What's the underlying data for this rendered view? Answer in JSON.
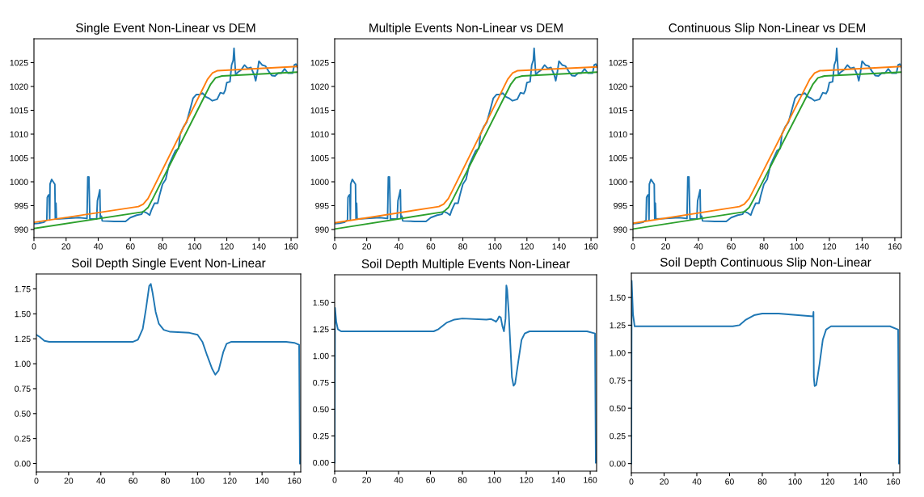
{
  "chart_data": [
    {
      "type": "line",
      "title": "Single Event Non-Linear vs DEM",
      "xlim": [
        0,
        164
      ],
      "ylim": [
        988.3,
        1030
      ],
      "xticks": [
        0,
        20,
        40,
        60,
        80,
        100,
        120,
        140,
        160
      ],
      "yticks": [
        990,
        995,
        1000,
        1005,
        1010,
        1015,
        1020,
        1025
      ],
      "series": [
        {
          "color": "#1f77b4",
          "x": [
            0,
            3,
            6,
            8,
            8.3,
            9,
            9.5,
            9.8,
            10,
            11,
            12,
            13,
            13.3,
            13.7,
            14,
            20,
            28,
            33,
            33.5,
            34.2,
            34.8,
            39,
            39.5,
            40.5,
            41,
            41.3,
            42,
            42.5,
            50,
            57,
            60,
            64,
            67,
            68,
            70,
            72,
            73,
            75,
            77,
            78,
            80,
            82,
            84,
            86,
            88,
            90,
            91,
            93,
            95,
            97,
            99,
            101,
            103,
            105,
            107,
            109,
            111,
            114,
            116,
            118,
            119,
            120,
            122,
            123,
            124,
            124.5,
            125.5,
            127,
            129,
            131,
            133,
            135,
            137,
            138,
            139,
            140,
            142,
            144,
            146,
            148,
            150,
            152,
            154,
            156,
            158,
            160,
            161,
            162,
            163,
            164
          ],
          "values": [
            991.2,
            991.3,
            991.5,
            992,
            996.7,
            997.2,
            997.3,
            992,
            999.5,
            1000.5,
            1000,
            999.5,
            992.2,
            995.5,
            992.2,
            992.3,
            992.5,
            992.3,
            1001,
            1001,
            992.2,
            992.2,
            996,
            997.5,
            998.3,
            992.5,
            992.8,
            991.8,
            991.7,
            991.7,
            992.5,
            993,
            993.2,
            993.8,
            993.5,
            993,
            994,
            995.5,
            995.5,
            997,
            999.5,
            1000.5,
            1003.5,
            1005,
            1006.5,
            1007,
            1010,
            1011.5,
            1012.5,
            1015,
            1017.5,
            1018.3,
            1018.3,
            1018.6,
            1017.8,
            1017.5,
            1017,
            1017.3,
            1018.7,
            1018.5,
            1019.2,
            1020.8,
            1021,
            1024.5,
            1025.5,
            1028,
            1022.5,
            1023,
            1023.5,
            1024.5,
            1023.8,
            1024,
            1022.5,
            1021.2,
            1023,
            1025.3,
            1024.5,
            1024.3,
            1023.2,
            1022.3,
            1022.2,
            1022.8,
            1022.8,
            1023.7,
            1022.8,
            1022.8,
            1022.8,
            1024.5,
            1024.7,
            1024
          ]
        },
        {
          "color": "#ff7f0e",
          "x": [
            0,
            65,
            68,
            71,
            74,
            108,
            111,
            114,
            164
          ],
          "values": [
            991.5,
            994.8,
            995.3,
            996.5,
            998.5,
            1021.5,
            1022.8,
            1023.3,
            1024.2
          ]
        },
        {
          "color": "#2ca02c",
          "x": [
            0,
            68,
            71,
            74,
            110,
            113,
            117,
            164
          ],
          "values": [
            990.2,
            993.7,
            994.6,
            996.5,
            1020.5,
            1021.8,
            1022.2,
            1023
          ]
        }
      ]
    },
    {
      "type": "line",
      "title": "Multiple Events Non-Linear vs DEM",
      "xlim": [
        0,
        164
      ],
      "ylim": [
        988.3,
        1030
      ],
      "xticks": [
        0,
        20,
        40,
        60,
        80,
        100,
        120,
        140,
        160
      ],
      "yticks": [
        990,
        995,
        1000,
        1005,
        1010,
        1015,
        1020,
        1025
      ],
      "series": [
        {
          "color": "#1f77b4",
          "x": [
            0,
            3,
            6,
            8,
            8.3,
            9,
            9.5,
            9.8,
            10,
            11,
            12,
            13,
            13.3,
            13.7,
            14,
            20,
            28,
            33,
            33.5,
            34.2,
            34.8,
            39,
            39.5,
            40.5,
            41,
            41.3,
            42,
            42.5,
            50,
            57,
            60,
            64,
            67,
            68,
            70,
            72,
            73,
            75,
            77,
            78,
            80,
            82,
            84,
            86,
            88,
            90,
            91,
            93,
            95,
            97,
            99,
            101,
            103,
            105,
            107,
            109,
            111,
            114,
            116,
            118,
            119,
            120,
            122,
            123,
            124,
            124.5,
            125.5,
            127,
            129,
            131,
            133,
            135,
            137,
            138,
            139,
            140,
            142,
            144,
            146,
            148,
            150,
            152,
            154,
            156,
            158,
            160,
            161,
            162,
            163,
            164
          ],
          "values": [
            991.2,
            991.3,
            991.5,
            992,
            996.7,
            997.2,
            997.3,
            992,
            999.5,
            1000.5,
            1000,
            999.5,
            992.2,
            995.5,
            992.2,
            992.3,
            992.5,
            992.3,
            1001,
            1001,
            992.2,
            992.2,
            996,
            997.5,
            998.3,
            992.5,
            992.8,
            991.8,
            991.7,
            991.7,
            992.5,
            993,
            993.2,
            993.8,
            993.5,
            993,
            994,
            995.5,
            995.5,
            997,
            999.5,
            1000.5,
            1003.5,
            1005,
            1006.5,
            1007,
            1010,
            1011.5,
            1012.5,
            1015,
            1017.5,
            1018.3,
            1018.3,
            1018.6,
            1017.8,
            1017.5,
            1017,
            1017.3,
            1018.7,
            1018.5,
            1019.2,
            1020.8,
            1021,
            1024.5,
            1025.5,
            1028,
            1022.5,
            1023,
            1023.5,
            1024.5,
            1023.8,
            1024,
            1022.5,
            1021.2,
            1023,
            1025.3,
            1024.5,
            1024.3,
            1023.2,
            1022.3,
            1022.2,
            1022.8,
            1022.8,
            1023.7,
            1022.8,
            1022.8,
            1022.8,
            1024.5,
            1024.7,
            1024
          ]
        },
        {
          "color": "#ff7f0e",
          "x": [
            0,
            65,
            68,
            71,
            74,
            108,
            111,
            114,
            164
          ],
          "values": [
            991.4,
            994.8,
            995.3,
            996.5,
            998.5,
            1021.5,
            1022.8,
            1023.3,
            1024.1
          ]
        },
        {
          "color": "#2ca02c",
          "x": [
            0,
            68,
            71,
            74,
            110,
            113,
            117,
            164
          ],
          "values": [
            990.1,
            993.7,
            994.6,
            996.5,
            1020.5,
            1021.8,
            1022.2,
            1023
          ]
        }
      ]
    },
    {
      "type": "line",
      "title": "Continuous Slip Non-Linear vs DEM",
      "xlim": [
        0,
        164
      ],
      "ylim": [
        988.3,
        1030
      ],
      "xticks": [
        0,
        20,
        40,
        60,
        80,
        100,
        120,
        140,
        160
      ],
      "yticks": [
        990,
        995,
        1000,
        1005,
        1010,
        1015,
        1020,
        1025
      ],
      "series": [
        {
          "color": "#1f77b4",
          "x": [
            0,
            3,
            6,
            8,
            8.3,
            9,
            9.5,
            9.8,
            10,
            11,
            12,
            13,
            13.3,
            13.7,
            14,
            20,
            28,
            33,
            33.5,
            34.2,
            34.8,
            39,
            39.5,
            40.5,
            41,
            41.3,
            42,
            42.5,
            50,
            57,
            60,
            64,
            67,
            68,
            70,
            72,
            73,
            75,
            77,
            78,
            80,
            82,
            84,
            86,
            88,
            90,
            91,
            93,
            95,
            97,
            99,
            101,
            103,
            105,
            107,
            109,
            111,
            114,
            116,
            118,
            119,
            120,
            122,
            123,
            124,
            124.5,
            125.5,
            127,
            129,
            131,
            133,
            135,
            137,
            138,
            139,
            140,
            142,
            144,
            146,
            148,
            150,
            152,
            154,
            156,
            158,
            160,
            161,
            162,
            163,
            164
          ],
          "values": [
            991.2,
            991.3,
            991.5,
            992,
            996.7,
            997.2,
            997.3,
            992,
            999.5,
            1000.5,
            1000,
            999.5,
            992.2,
            995.5,
            992.2,
            992.3,
            992.5,
            992.3,
            1001,
            1001,
            992.2,
            992.2,
            996,
            997.5,
            998.3,
            992.5,
            992.8,
            991.8,
            991.7,
            991.7,
            992.5,
            993,
            993.2,
            993.8,
            993.5,
            993,
            994,
            995.5,
            995.5,
            997,
            999.5,
            1000.5,
            1003.5,
            1005,
            1006.5,
            1007,
            1010,
            1011.5,
            1012.5,
            1015,
            1017.5,
            1018.3,
            1018.3,
            1018.6,
            1017.8,
            1017.5,
            1017,
            1017.3,
            1018.7,
            1018.5,
            1019.2,
            1020.8,
            1021,
            1024.5,
            1025.5,
            1028,
            1022.5,
            1023,
            1023.5,
            1024.5,
            1023.8,
            1024,
            1022.5,
            1021.2,
            1023,
            1025.3,
            1024.5,
            1024.3,
            1023.2,
            1022.3,
            1022.2,
            1022.8,
            1022.8,
            1023.7,
            1022.8,
            1022.8,
            1022.8,
            1024.5,
            1024.7,
            1024
          ]
        },
        {
          "color": "#ff7f0e",
          "x": [
            0,
            65,
            68,
            71,
            74,
            108,
            111,
            114,
            164
          ],
          "values": [
            991.3,
            994.8,
            995.3,
            996.5,
            998.5,
            1021.5,
            1022.8,
            1023.3,
            1024.2
          ]
        },
        {
          "color": "#2ca02c",
          "x": [
            0,
            68,
            71,
            74,
            110,
            113,
            117,
            164
          ],
          "values": [
            990.1,
            993.7,
            994.6,
            996.5,
            1020.5,
            1021.8,
            1022.2,
            1023
          ]
        }
      ]
    },
    {
      "type": "line",
      "title": "Soil Depth Single Event Non-Linear",
      "xlim": [
        0,
        164
      ],
      "ylim": [
        -0.085,
        1.9
      ],
      "xticks": [
        0,
        20,
        40,
        60,
        80,
        100,
        120,
        140,
        160
      ],
      "yticks": [
        {
          "value": 0,
          "label": "0.00"
        },
        {
          "value": 0.25,
          "label": "0.25"
        },
        {
          "value": 0.5,
          "label": "0.50"
        },
        {
          "value": 0.75,
          "label": "0.75"
        },
        {
          "value": 1,
          "label": "1.00"
        },
        {
          "value": 1.25,
          "label": "1.25"
        },
        {
          "value": 1.5,
          "label": "1.50"
        },
        {
          "value": 1.75,
          "label": "1.75"
        }
      ],
      "series": [
        {
          "color": "#1f77b4",
          "x": [
            0,
            2,
            5,
            8,
            60,
            63,
            66,
            68,
            70,
            71,
            72,
            74,
            76,
            79,
            83,
            95,
            100,
            103,
            106,
            109,
            111,
            113,
            116,
            118,
            121,
            155,
            160,
            163,
            163.5
          ],
          "values": [
            1.29,
            1.27,
            1.23,
            1.22,
            1.22,
            1.24,
            1.35,
            1.55,
            1.78,
            1.8,
            1.72,
            1.52,
            1.4,
            1.34,
            1.32,
            1.31,
            1.29,
            1.22,
            1.08,
            0.95,
            0.89,
            0.93,
            1.12,
            1.2,
            1.22,
            1.22,
            1.21,
            1.19,
            0.0
          ]
        }
      ]
    },
    {
      "type": "line",
      "title": "Soil Depth Multiple Events Non-Linear",
      "xlim": [
        0,
        164
      ],
      "ylim": [
        -0.08,
        1.76
      ],
      "xticks": [
        0,
        20,
        40,
        60,
        80,
        100,
        120,
        140,
        160
      ],
      "yticks": [
        {
          "value": 0,
          "label": "0.00"
        },
        {
          "value": 0.25,
          "label": "0.25"
        },
        {
          "value": 0.5,
          "label": "0.50"
        },
        {
          "value": 0.75,
          "label": "0.75"
        },
        {
          "value": 1,
          "label": "1.00"
        },
        {
          "value": 1.25,
          "label": "1.25"
        },
        {
          "value": 1.5,
          "label": "1.50"
        }
      ],
      "series": [
        {
          "color": "#1f77b4",
          "x": [
            0,
            0.2,
            1,
            2,
            4,
            62,
            65,
            70,
            75,
            80,
            95,
            98,
            100,
            101,
            102,
            103,
            104,
            105,
            106,
            107,
            107.5,
            108,
            109,
            110,
            111,
            112,
            113,
            115,
            117,
            119,
            122,
            158,
            163,
            163.5
          ],
          "values": [
            0.0,
            1.45,
            1.32,
            1.25,
            1.23,
            1.23,
            1.25,
            1.31,
            1.34,
            1.35,
            1.34,
            1.345,
            1.33,
            1.32,
            1.34,
            1.37,
            1.36,
            1.28,
            1.23,
            1.35,
            1.66,
            1.62,
            1.4,
            1.1,
            0.8,
            0.72,
            0.74,
            0.95,
            1.15,
            1.21,
            1.23,
            1.23,
            1.21,
            0.0
          ]
        }
      ]
    },
    {
      "type": "line",
      "title": "Soil Depth Continuous Slip Non-Linear",
      "xlim": [
        0,
        164
      ],
      "ylim": [
        -0.083,
        1.72
      ],
      "xticks": [
        0,
        20,
        40,
        60,
        80,
        100,
        120,
        140,
        160
      ],
      "yticks": [
        {
          "value": 0,
          "label": "0.00"
        },
        {
          "value": 0.25,
          "label": "0.25"
        },
        {
          "value": 0.5,
          "label": "0.50"
        },
        {
          "value": 0.75,
          "label": "0.75"
        },
        {
          "value": 1,
          "label": "1.00"
        },
        {
          "value": 1.25,
          "label": "1.25"
        },
        {
          "value": 1.5,
          "label": "1.50"
        }
      ],
      "series": [
        {
          "color": "#1f77b4",
          "x": [
            0,
            0.2,
            1,
            2,
            62,
            66,
            70,
            75,
            80,
            90,
            111,
            111.3,
            111.5,
            112,
            113,
            115,
            117,
            119,
            122,
            158,
            163,
            163.5
          ],
          "values": [
            0.0,
            1.65,
            1.35,
            1.24,
            1.24,
            1.25,
            1.3,
            1.34,
            1.355,
            1.355,
            1.33,
            1.37,
            0.78,
            0.7,
            0.71,
            0.9,
            1.12,
            1.21,
            1.24,
            1.24,
            1.21,
            0.0
          ]
        }
      ]
    }
  ]
}
